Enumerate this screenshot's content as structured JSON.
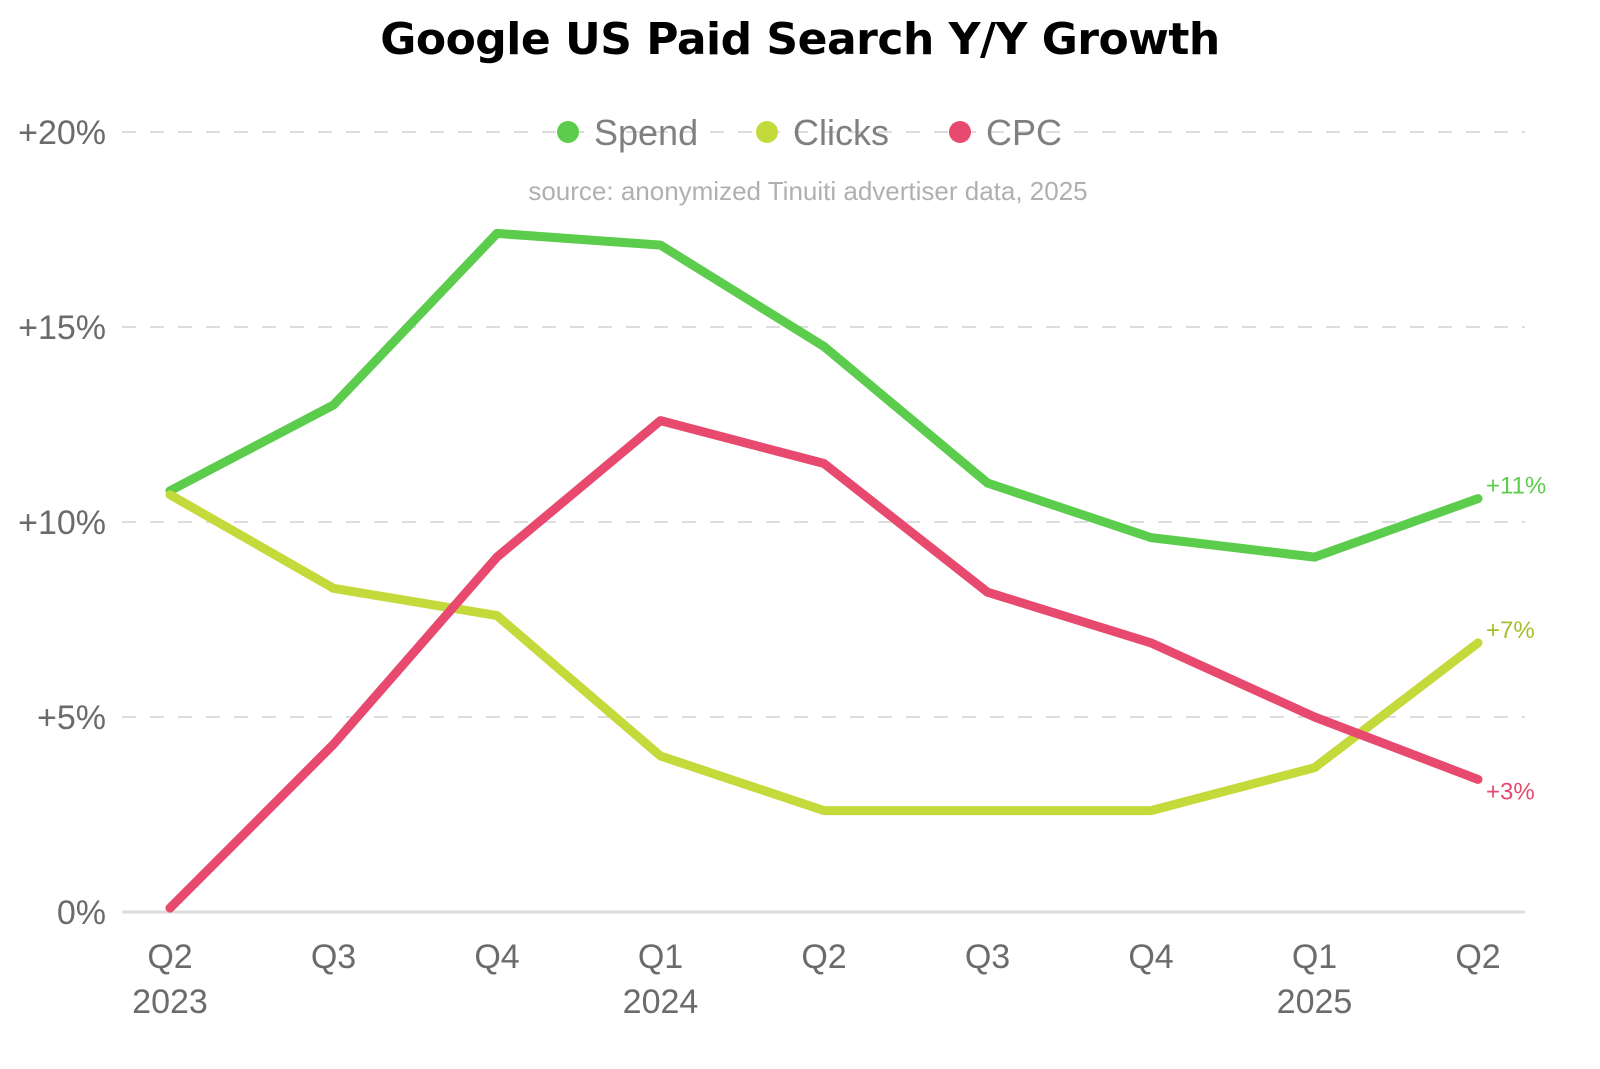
{
  "chart_data": {
    "type": "line",
    "title": "Google US Paid Search Y/Y Growth",
    "subtitle": "source: anonymized Tinuiti advertiser data, 2025",
    "xlabel": "",
    "ylabel": "",
    "ylim": [
      0,
      20
    ],
    "yticks": [
      0,
      5,
      10,
      15,
      20
    ],
    "ytick_labels": [
      "0%",
      "+5%",
      "+10%",
      "+15%",
      "+20%"
    ],
    "grid": true,
    "legend_position": "top-center",
    "x": [
      {
        "quarter": "Q2",
        "year": "2023"
      },
      {
        "quarter": "Q3",
        "year": ""
      },
      {
        "quarter": "Q4",
        "year": ""
      },
      {
        "quarter": "Q1",
        "year": "2024"
      },
      {
        "quarter": "Q2",
        "year": ""
      },
      {
        "quarter": "Q3",
        "year": ""
      },
      {
        "quarter": "Q4",
        "year": ""
      },
      {
        "quarter": "Q1",
        "year": "2025"
      },
      {
        "quarter": "Q2",
        "year": ""
      }
    ],
    "series": [
      {
        "name": "Spend",
        "color": "#5ccc4c",
        "label_color": "#5ccc4c",
        "end_label": "+11%",
        "values": [
          10.8,
          13.0,
          17.4,
          17.1,
          14.5,
          11.0,
          9.6,
          9.1,
          10.6
        ]
      },
      {
        "name": "Clicks",
        "color": "#c4d93a",
        "label_color": "#a9bd2e",
        "end_label": "+7%",
        "values": [
          10.7,
          8.3,
          7.6,
          4.0,
          2.6,
          2.6,
          2.6,
          3.7,
          6.9
        ]
      },
      {
        "name": "CPC",
        "color": "#e84a6f",
        "label_color": "#e84a6f",
        "end_label": "+3%",
        "values": [
          0.1,
          4.3,
          9.1,
          12.6,
          11.5,
          8.2,
          6.9,
          5.0,
          3.4
        ]
      }
    ]
  }
}
